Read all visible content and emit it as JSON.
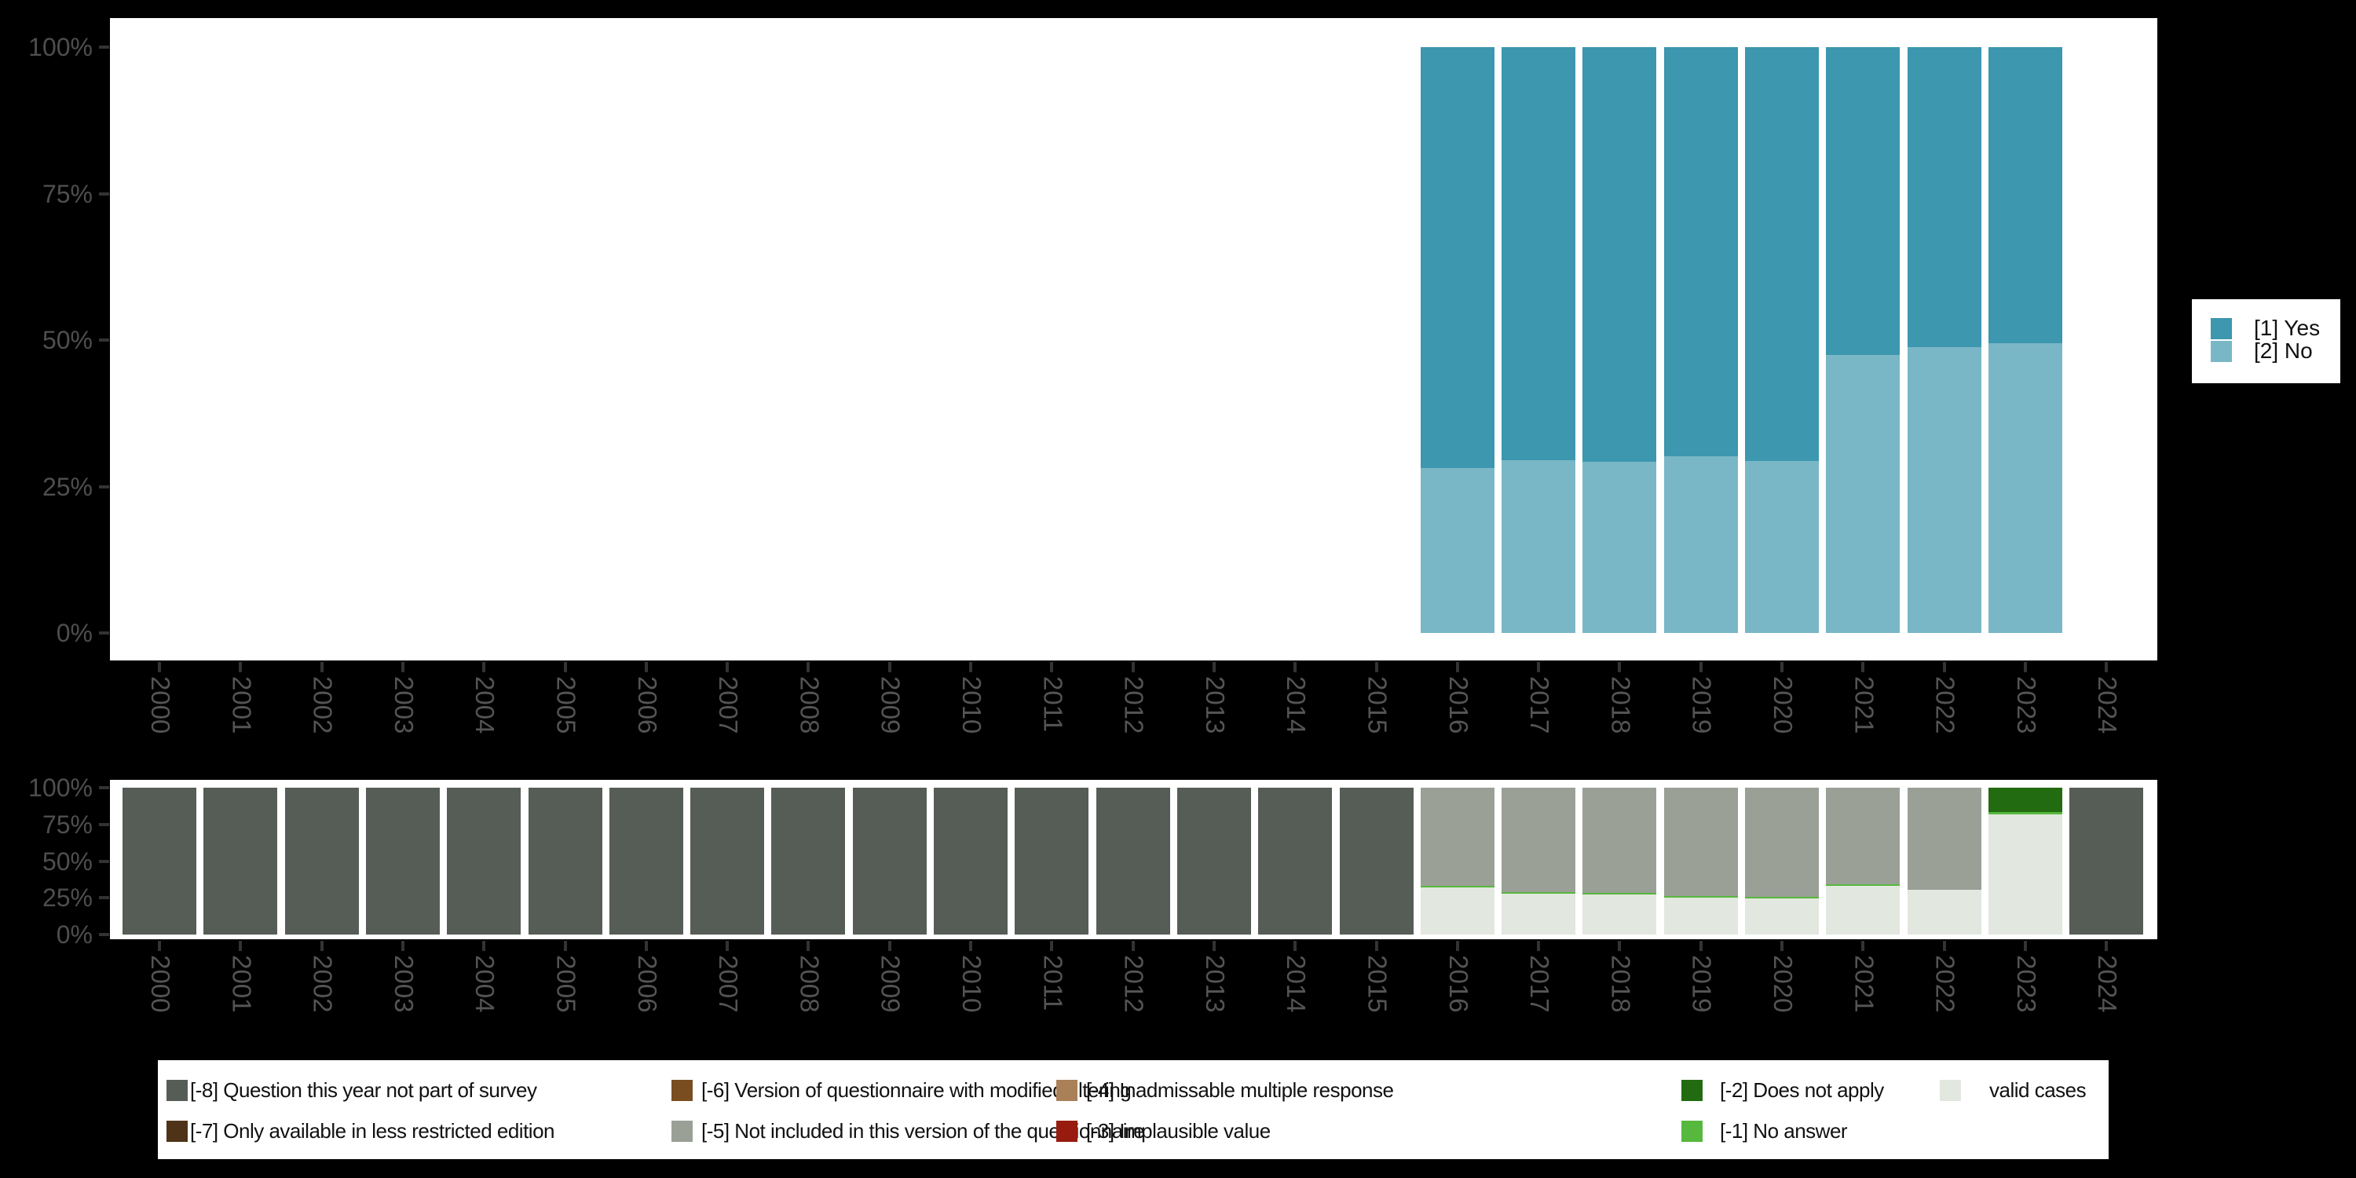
{
  "background_color": "#000000",
  "chart_data": [
    {
      "id": "responses",
      "type": "bar",
      "subtype": "stacked-percent-column",
      "title": "",
      "xlabel": "",
      "ylabel": "",
      "ylim": [
        0,
        100
      ],
      "grid": false,
      "legend_position": "right",
      "y_ticks": [
        "100%",
        "75%",
        "50%",
        "25%",
        "0%"
      ],
      "categories": [
        "2000",
        "2001",
        "2002",
        "2003",
        "2004",
        "2005",
        "2006",
        "2007",
        "2008",
        "2009",
        "2010",
        "2011",
        "2012",
        "2013",
        "2014",
        "2015",
        "2016",
        "2017",
        "2018",
        "2019",
        "2020",
        "2021",
        "2022",
        "2023",
        "2024"
      ],
      "legend": [
        {
          "key": "yes",
          "label": "[1] Yes",
          "color": "#3C97AF"
        },
        {
          "key": "no",
          "label": "[2] No",
          "color": "#7AB7C6"
        }
      ],
      "series": [
        {
          "key": "yes",
          "name": "[1] Yes",
          "values": [
            null,
            null,
            null,
            null,
            null,
            null,
            null,
            null,
            null,
            null,
            null,
            null,
            null,
            null,
            null,
            null,
            71.8,
            70.5,
            70.8,
            69.8,
            70.6,
            52.5,
            51.2,
            50.5,
            null
          ]
        },
        {
          "key": "no",
          "name": "[2] No",
          "values": [
            null,
            null,
            null,
            null,
            null,
            null,
            null,
            null,
            null,
            null,
            null,
            null,
            null,
            null,
            null,
            null,
            28.2,
            29.5,
            29.2,
            30.2,
            29.4,
            47.5,
            48.8,
            49.5,
            null
          ]
        }
      ]
    },
    {
      "id": "missing-values",
      "type": "bar",
      "subtype": "stacked-percent-column",
      "title": "",
      "xlabel": "",
      "ylabel": "",
      "ylim": [
        0,
        100
      ],
      "grid": false,
      "legend_position": "bottom",
      "y_ticks": [
        "100%",
        "75%",
        "50%",
        "25%",
        "0%"
      ],
      "categories": [
        "2000",
        "2001",
        "2002",
        "2003",
        "2004",
        "2005",
        "2006",
        "2007",
        "2008",
        "2009",
        "2010",
        "2011",
        "2012",
        "2013",
        "2014",
        "2015",
        "2016",
        "2017",
        "2018",
        "2019",
        "2020",
        "2021",
        "2022",
        "2023",
        "2024"
      ],
      "legend": [
        {
          "key": "-8",
          "label": "[-8] Question this year not part of survey",
          "color": "#565D56"
        },
        {
          "key": "-7",
          "label": "[-7] Only available in less restricted edition",
          "color": "#4F3318"
        },
        {
          "key": "-6",
          "label": "[-6] Version of questionnaire with modified filtering",
          "color": "#7A4D21"
        },
        {
          "key": "-5",
          "label": "[-5] Not included in this version of the questionnaire",
          "color": "#9AA096"
        },
        {
          "key": "-4",
          "label": "[-4] Inadmissable multiple response",
          "color": "#A98058"
        },
        {
          "key": "-3",
          "label": "[-3] Implausible value",
          "color": "#971C0F"
        },
        {
          "key": "-2",
          "label": "[-2] Does not apply",
          "color": "#226B10"
        },
        {
          "key": "-1",
          "label": "[-1] No answer",
          "color": "#56B83D"
        },
        {
          "key": "valid",
          "label": "valid cases",
          "color": "#E2E7DF"
        }
      ],
      "series": [
        {
          "key": "-8",
          "name": "[-8] Question this year not part of survey",
          "values": [
            100,
            100,
            100,
            100,
            100,
            100,
            100,
            100,
            100,
            100,
            100,
            100,
            100,
            100,
            100,
            100,
            null,
            null,
            null,
            null,
            null,
            null,
            null,
            null,
            100
          ]
        },
        {
          "key": "-5",
          "name": "[-5] Not included in this version of the questionnaire",
          "values": [
            null,
            null,
            null,
            null,
            null,
            null,
            null,
            null,
            null,
            null,
            null,
            null,
            null,
            null,
            null,
            null,
            66.8,
            71.2,
            71.6,
            73.8,
            74.2,
            65.8,
            69.4,
            null,
            null
          ]
        },
        {
          "key": "-2",
          "name": "[-2] Does not apply",
          "values": [
            null,
            null,
            null,
            null,
            null,
            null,
            null,
            null,
            null,
            null,
            null,
            null,
            null,
            null,
            null,
            null,
            null,
            null,
            null,
            null,
            null,
            null,
            null,
            16.7,
            null
          ]
        },
        {
          "key": "-1",
          "name": "[-1] No answer",
          "values": [
            null,
            null,
            null,
            null,
            null,
            null,
            null,
            null,
            null,
            null,
            null,
            null,
            null,
            null,
            null,
            null,
            1.2,
            1.2,
            1.2,
            1.1,
            1.4,
            1.2,
            null,
            1.4,
            null
          ]
        },
        {
          "key": "valid",
          "name": "valid cases",
          "values": [
            null,
            null,
            null,
            null,
            null,
            null,
            null,
            null,
            null,
            null,
            null,
            null,
            null,
            null,
            null,
            null,
            32.0,
            27.6,
            27.2,
            25.1,
            24.4,
            33.0,
            30.6,
            81.9,
            null
          ]
        }
      ]
    }
  ]
}
